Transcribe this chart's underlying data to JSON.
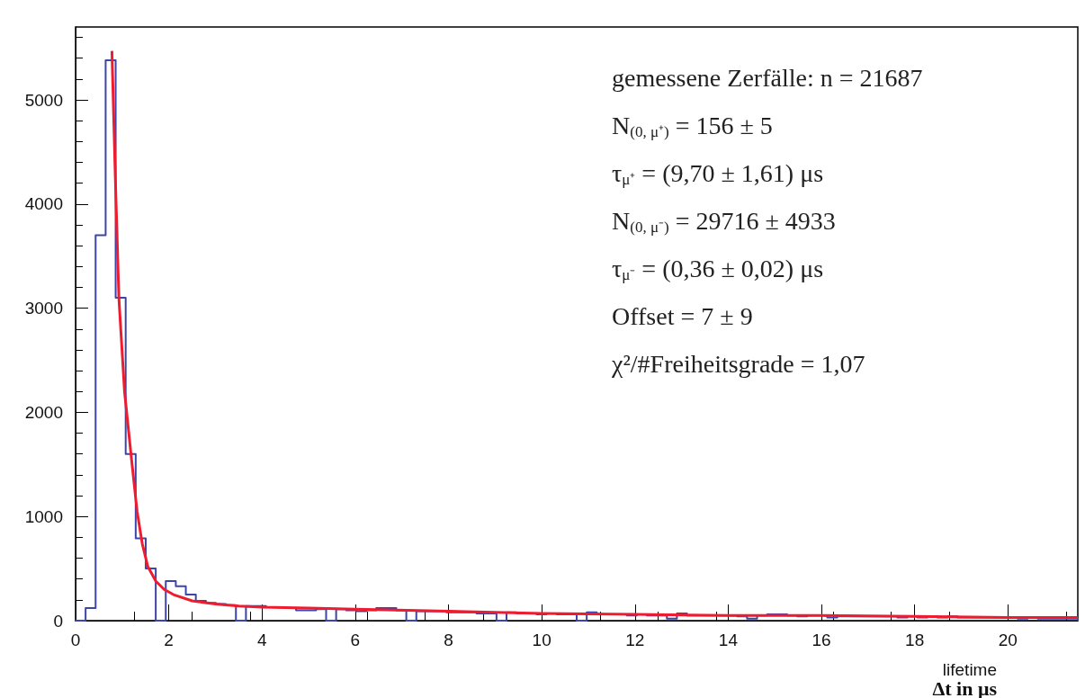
{
  "chart_data": {
    "type": "histogram",
    "xlabel": "lifetime\nΔt in μs",
    "bins": [
      0,
      0.215,
      0.43,
      0.645,
      0.86,
      1.075,
      1.29,
      1.505,
      1.72,
      1.935,
      2.15,
      2.365,
      2.58,
      2.795,
      3.01,
      3.225,
      3.44,
      3.655,
      3.87,
      4.085,
      4.3,
      4.515,
      4.73,
      4.945,
      5.16,
      5.375,
      5.59,
      5.805,
      6.02,
      6.235,
      6.45,
      6.665,
      6.88,
      7.095,
      7.31,
      7.525,
      7.74,
      7.955,
      8.17,
      8.385,
      8.6,
      8.815,
      9.03,
      9.245,
      9.46,
      9.675,
      9.89,
      10.105,
      10.32,
      10.535,
      10.75,
      10.965,
      11.18,
      11.395,
      11.61,
      11.825,
      12.04,
      12.255,
      12.47,
      12.685,
      12.9,
      13.115,
      13.33,
      13.545,
      13.76,
      13.975,
      14.19,
      14.405,
      14.62,
      14.835,
      15.05,
      15.265,
      15.48,
      15.695,
      15.91,
      16.125,
      16.34,
      16.555,
      16.77,
      16.985,
      17.2,
      17.415,
      17.63,
      17.845,
      18.06,
      18.275,
      18.49,
      18.705,
      18.92,
      19.135,
      19.35,
      19.565,
      19.78,
      19.995,
      20.21,
      20.425,
      20.64,
      20.855,
      21.07,
      21.285,
      21.5
    ],
    "values": [
      0,
      120,
      3700,
      5380,
      3100,
      1600,
      790,
      500,
      0,
      380,
      330,
      250,
      190,
      170,
      160,
      150,
      0,
      140,
      140,
      130,
      130,
      120,
      100,
      100,
      110,
      0,
      110,
      100,
      90,
      100,
      120,
      120,
      100,
      0,
      90,
      90,
      90,
      80,
      80,
      80,
      70,
      70,
      0,
      80,
      70,
      70,
      60,
      70,
      60,
      60,
      0,
      80,
      60,
      60,
      60,
      50,
      60,
      50,
      50,
      20,
      70,
      50,
      50,
      50,
      50,
      50,
      40,
      20,
      50,
      60,
      60,
      50,
      40,
      50,
      50,
      30,
      40,
      40,
      40,
      40,
      40,
      40,
      30,
      40,
      30,
      40,
      30,
      40,
      30,
      30,
      30,
      30,
      30,
      30,
      20,
      30,
      20,
      20,
      20,
      20
    ],
    "color": "#3c46a8",
    "series": [
      {
        "type": "line",
        "color": "#ee1c2e",
        "x": [
          0.78,
          0.85,
          0.93,
          1.05,
          1.2,
          1.32,
          1.43,
          1.55,
          1.72,
          1.9,
          2.1,
          2.5,
          3,
          3.5,
          4,
          5,
          6,
          8,
          10,
          12,
          14,
          16,
          18,
          20,
          21.5
        ],
        "values": [
          5470,
          4300,
          3090,
          2200,
          1550,
          1050,
          740,
          520,
          380,
          300,
          250,
          190,
          160,
          140,
          130,
          120,
          110,
          90,
          70,
          60,
          50,
          50,
          40,
          30,
          30
        ]
      }
    ],
    "xlim": [
      0,
      21.5
    ],
    "xticks": [
      0,
      2,
      4,
      6,
      8,
      10,
      12,
      14,
      16,
      18,
      20
    ],
    "ylim": [
      0,
      5700
    ],
    "yticks": [
      0,
      1000,
      2000,
      3000,
      4000,
      5000
    ],
    "grid": false,
    "annotations": [
      "gemessene Zerfälle: n = 21687",
      "N$_{(0, μ⁺)}$ = 156 ± 5",
      "τ$_{μ⁺}$ = (9,70 ± 1,61) μs",
      "N$_{(0, μ⁻)}$ = 29716 ± 4933",
      "τ$_{μ⁻}$ = (0,36 ± 0,02) μs",
      "Offset = 7 ± 9",
      "χ²/#Freiheitsgrade = 1,07"
    ]
  }
}
